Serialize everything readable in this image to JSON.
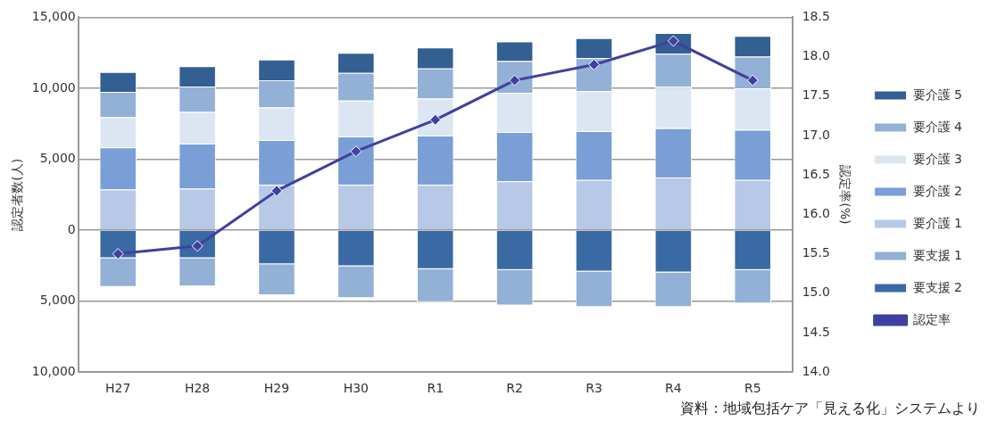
{
  "chart_data": {
    "type": "bar",
    "stacked": true,
    "ylabel": "認定者数(人)",
    "y2label": "認定率(%)",
    "categories": [
      "H27",
      "H28",
      "H29",
      "H30",
      "R1",
      "R2",
      "R3",
      "R4",
      "R5"
    ],
    "series": [
      {
        "name": "要介護 1",
        "color": "#b7c9e6",
        "values": [
          2860,
          2920,
          3190,
          3190,
          3190,
          3440,
          3540,
          3710,
          3540
        ]
      },
      {
        "name": "要介護 2",
        "color": "#7a9fd6",
        "values": [
          2970,
          3180,
          3160,
          3420,
          3480,
          3480,
          3440,
          3480,
          3540
        ]
      },
      {
        "name": "要介護 3",
        "color": "#dce6f2",
        "values": [
          2130,
          2230,
          2290,
          2520,
          2600,
          2770,
          2810,
          2920,
          2920
        ]
      },
      {
        "name": "要介護 4",
        "color": "#93b0d6",
        "values": [
          1790,
          1770,
          1920,
          1950,
          2130,
          2230,
          2330,
          2330,
          2230
        ]
      },
      {
        "name": "要介護 5",
        "color": "#335f93",
        "values": [
          1400,
          1460,
          1460,
          1420,
          1480,
          1370,
          1420,
          1460,
          1460
        ]
      },
      {
        "name": "要支援 2",
        "color": "#3a6aa3",
        "values": [
          -1980,
          -1980,
          -2400,
          -2540,
          -2750,
          -2810,
          -2920,
          -2980,
          -2810
        ]
      },
      {
        "name": "要支援 1",
        "color": "#93b0d6",
        "values": [
          -2020,
          -1980,
          -2180,
          -2250,
          -2310,
          -2500,
          -2500,
          -2440,
          -2360
        ]
      },
      {
        "name": "認定率",
        "type": "line",
        "axis": "y2",
        "color": "#4040a0",
        "marker": "diamond",
        "values": [
          15.5,
          15.6,
          16.3,
          16.8,
          17.2,
          17.7,
          17.9,
          18.2,
          17.7
        ]
      }
    ],
    "ylim": [
      -10000,
      15000
    ],
    "yticks": [
      {
        "value": -10000,
        "label": "10,000"
      },
      {
        "value": -5000,
        "label": "5,000"
      },
      0,
      {
        "value": 5000,
        "label": "5,000"
      },
      {
        "value": 10000,
        "label": "10,000"
      },
      {
        "value": 15000,
        "label": "15,000"
      }
    ],
    "y2lim": [
      14,
      18.5
    ],
    "y2ticks": [
      {
        "value": 14,
        "label": "14.0"
      },
      14.5,
      {
        "value": 15,
        "label": "15.0"
      },
      15.5,
      {
        "value": 16,
        "label": "16.0"
      },
      16.5,
      {
        "value": 17,
        "label": "17.0"
      },
      17.5,
      {
        "value": 18,
        "label": "18.0"
      },
      18.5
    ],
    "grid": "y",
    "legend": "right",
    "annotations": [
      "資料：地域包括ケア「見える化」システムより"
    ]
  }
}
